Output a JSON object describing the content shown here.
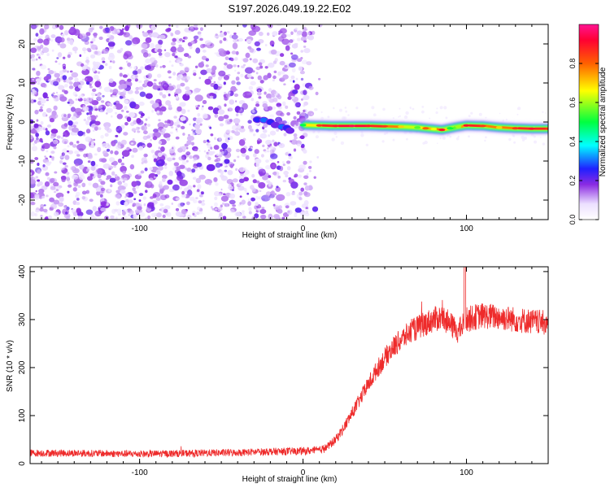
{
  "title": "S197.2026.049.19.22.E02",
  "chart_data": [
    {
      "type": "heatmap",
      "panel": "spectrogram",
      "xlabel": "Height of straight line (km)",
      "ylabel": "Frequency (Hz)",
      "xlim": [
        -167,
        150
      ],
      "ylim": [
        -25,
        25
      ],
      "xticks": [
        -100,
        0,
        100
      ],
      "yticks": [
        -20,
        -10,
        0,
        10,
        20
      ],
      "noise_region_x": [
        -167,
        5
      ],
      "signal_track": {
        "x": [
          0,
          10,
          20,
          30,
          40,
          50,
          60,
          70,
          75,
          80,
          85,
          90,
          95,
          100,
          110,
          120,
          130,
          140,
          150
        ],
        "freq": [
          -0.8,
          -0.9,
          -1.0,
          -1.0,
          -1.0,
          -1.1,
          -1.2,
          -1.4,
          -1.6,
          -1.8,
          -2.0,
          -1.6,
          -1.2,
          -0.9,
          -1.0,
          -1.4,
          -1.6,
          -1.7,
          -1.7
        ],
        "amplitude": [
          0.5,
          0.85,
          0.9,
          0.95,
          0.9,
          0.85,
          0.7,
          0.55,
          0.8,
          0.65,
          0.9,
          0.5,
          0.6,
          0.9,
          0.85,
          0.7,
          0.85,
          0.9,
          0.85
        ]
      },
      "secondary_blobs": {
        "x": [
          -28,
          -24,
          -20,
          -17,
          -13,
          -10,
          -8
        ],
        "freq": [
          0.6,
          0.5,
          0.0,
          -0.8,
          -1.2,
          -1.5,
          -2.2
        ],
        "amplitude": [
          0.25,
          0.3,
          0.25,
          0.2,
          0.3,
          0.25,
          0.2
        ]
      },
      "colorbar": {
        "label": "Normalized spectral amplitude",
        "range": [
          0,
          1
        ],
        "ticks": [
          "0.0",
          "0.2",
          "0.4",
          "0.6",
          "0.8"
        ]
      }
    },
    {
      "type": "line",
      "panel": "snr",
      "xlabel": "Height of straight line (km)",
      "ylabel": "SNR (10 * v/v)",
      "xlim": [
        -167,
        150
      ],
      "ylim": [
        0,
        410
      ],
      "xticks": [
        -100,
        0,
        100
      ],
      "yticks": [
        0,
        100,
        200,
        300,
        400
      ],
      "series": [
        {
          "name": "SNR",
          "color": "#ee2b2b",
          "x": [
            -167,
            -150,
            -120,
            -100,
            -80,
            -60,
            -40,
            -20,
            0,
            10,
            15,
            20,
            25,
            30,
            35,
            40,
            45,
            50,
            55,
            60,
            65,
            70,
            75,
            80,
            85,
            90,
            95,
            100,
            105,
            110,
            120,
            130,
            140,
            150
          ],
          "y": [
            22,
            22,
            21,
            20,
            21,
            22,
            23,
            25,
            26,
            28,
            35,
            50,
            75,
            105,
            135,
            165,
            195,
            220,
            242,
            258,
            272,
            283,
            292,
            300,
            305,
            290,
            275,
            300,
            305,
            308,
            305,
            300,
            296,
            292
          ]
        }
      ]
    }
  ]
}
